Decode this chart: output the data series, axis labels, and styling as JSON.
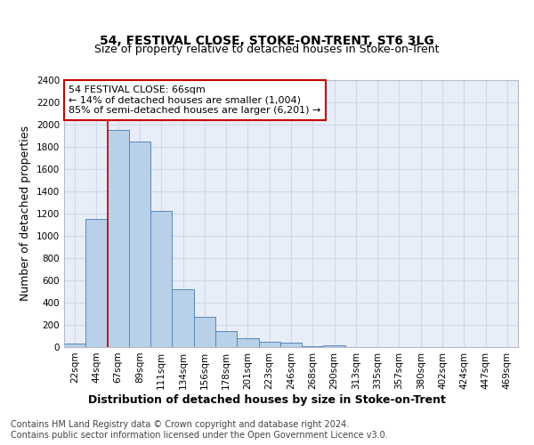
{
  "title": "54, FESTIVAL CLOSE, STOKE-ON-TRENT, ST6 3LG",
  "subtitle": "Size of property relative to detached houses in Stoke-on-Trent",
  "xlabel": "Distribution of detached houses by size in Stoke-on-Trent",
  "ylabel": "Number of detached properties",
  "footnote1": "Contains HM Land Registry data © Crown copyright and database right 2024.",
  "footnote2": "Contains public sector information licensed under the Open Government Licence v3.0.",
  "categories": [
    "22sqm",
    "44sqm",
    "67sqm",
    "89sqm",
    "111sqm",
    "134sqm",
    "156sqm",
    "178sqm",
    "201sqm",
    "223sqm",
    "246sqm",
    "268sqm",
    "290sqm",
    "313sqm",
    "335sqm",
    "357sqm",
    "380sqm",
    "402sqm",
    "424sqm",
    "447sqm",
    "469sqm"
  ],
  "values": [
    30,
    1150,
    1950,
    1850,
    1225,
    520,
    270,
    145,
    80,
    50,
    40,
    5,
    15,
    4,
    3,
    2,
    2,
    1,
    1,
    2,
    1
  ],
  "bar_color": "#b8d0e8",
  "bar_edge_color": "#5588bb",
  "vline_color": "#cc0000",
  "vline_index": 1.5,
  "annotation_text": "54 FESTIVAL CLOSE: 66sqm\n← 14% of detached houses are smaller (1,004)\n85% of semi-detached houses are larger (6,201) →",
  "annotation_edge": "#cc0000",
  "ylim": [
    0,
    2400
  ],
  "yticks": [
    0,
    200,
    400,
    600,
    800,
    1000,
    1200,
    1400,
    1600,
    1800,
    2000,
    2200,
    2400
  ],
  "bg_color": "#e8eef8",
  "grid_color": "#d0d8e8",
  "title_fontsize": 10,
  "subtitle_fontsize": 9,
  "axis_label_fontsize": 9,
  "tick_fontsize": 7.5,
  "footnote_fontsize": 7
}
